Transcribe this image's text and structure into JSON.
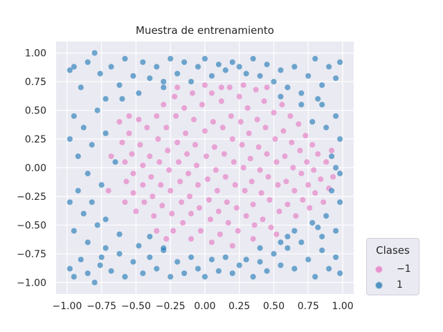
{
  "chart_data": {
    "type": "scatter",
    "title": "Muestra de entrenamiento",
    "xlim": [
      -1.08,
      1.08
    ],
    "ylim": [
      -1.1,
      1.1
    ],
    "xticks": [
      -1.0,
      -0.75,
      -0.5,
      -0.25,
      0.0,
      0.25,
      0.5,
      0.75,
      1.0
    ],
    "yticks": [
      -1.0,
      -0.75,
      -0.5,
      -0.25,
      0.0,
      0.25,
      0.5,
      0.75,
      1.0
    ],
    "xtick_labels": [
      "−1.00",
      "−0.75",
      "−0.50",
      "−0.25",
      "0.00",
      "0.25",
      "0.50",
      "0.75",
      "1.00"
    ],
    "ytick_labels": [
      "−1.00",
      "−0.75",
      "−0.50",
      "−0.25",
      "0.00",
      "0.25",
      "0.50",
      "0.75",
      "1.00"
    ],
    "grid": true,
    "legend": {
      "title": "Clases",
      "placement": "outside-lower-right",
      "entries": [
        {
          "label": "−1",
          "color": "#e377c2"
        },
        {
          "label": "1",
          "color": "#1f77b4"
        }
      ]
    },
    "colors": {
      "negative_class": "#e377c2",
      "positive_class": "#1f77b4",
      "background": "#eaeaf2",
      "grid": "#ffffff"
    },
    "series": [
      {
        "class": "−1",
        "color": "#e377c2",
        "points": [
          [
            -0.62,
            0.4
          ],
          [
            -0.6,
            0.22
          ],
          [
            -0.58,
            0.05
          ],
          [
            -0.57,
            -0.12
          ],
          [
            -0.58,
            -0.3
          ],
          [
            -0.55,
            0.3
          ],
          [
            -0.53,
            0.12
          ],
          [
            -0.52,
            -0.05
          ],
          [
            -0.52,
            -0.22
          ],
          [
            -0.5,
            -0.38
          ],
          [
            -0.48,
            0.42
          ],
          [
            -0.47,
            0.2
          ],
          [
            -0.45,
            0.02
          ],
          [
            -0.45,
            -0.15
          ],
          [
            -0.44,
            -0.3
          ],
          [
            -0.42,
            0.35
          ],
          [
            -0.4,
            0.1
          ],
          [
            -0.39,
            -0.08
          ],
          [
            -0.38,
            -0.25
          ],
          [
            -0.37,
            -0.42
          ],
          [
            -0.35,
            0.45
          ],
          [
            -0.34,
            0.25
          ],
          [
            -0.33,
            0.05
          ],
          [
            -0.32,
            -0.15
          ],
          [
            -0.31,
            -0.33
          ],
          [
            -0.3,
            0.55
          ],
          [
            -0.28,
            0.35
          ],
          [
            -0.27,
            0.15
          ],
          [
            -0.26,
            -0.02
          ],
          [
            -0.25,
            -0.2
          ],
          [
            -0.24,
            -0.4
          ],
          [
            -0.23,
            -0.55
          ],
          [
            -0.22,
            0.62
          ],
          [
            -0.21,
            0.45
          ],
          [
            -0.2,
            0.22
          ],
          [
            -0.19,
            0.05
          ],
          [
            -0.18,
            -0.12
          ],
          [
            -0.17,
            -0.3
          ],
          [
            -0.16,
            -0.48
          ],
          [
            -0.15,
            0.52
          ],
          [
            -0.14,
            0.3
          ],
          [
            -0.13,
            0.12
          ],
          [
            -0.12,
            -0.05
          ],
          [
            -0.11,
            -0.25
          ],
          [
            -0.1,
            -0.4
          ],
          [
            -0.09,
            0.65
          ],
          [
            -0.08,
            0.42
          ],
          [
            -0.07,
            0.2
          ],
          [
            -0.06,
            0.02
          ],
          [
            -0.05,
            -0.15
          ],
          [
            -0.04,
            -0.35
          ],
          [
            -0.03,
            -0.55
          ],
          [
            -0.02,
            0.55
          ],
          [
            0.0,
            0.32
          ],
          [
            0.01,
            0.1
          ],
          [
            0.02,
            -0.1
          ],
          [
            0.03,
            -0.28
          ],
          [
            0.04,
            -0.45
          ],
          [
            0.05,
            0.65
          ],
          [
            0.06,
            0.4
          ],
          [
            0.07,
            0.18
          ],
          [
            0.08,
            -0.02
          ],
          [
            0.09,
            -0.2
          ],
          [
            0.1,
            -0.38
          ],
          [
            0.11,
            -0.58
          ],
          [
            0.12,
            0.58
          ],
          [
            0.13,
            0.35
          ],
          [
            0.14,
            0.12
          ],
          [
            0.15,
            -0.08
          ],
          [
            0.16,
            -0.3
          ],
          [
            0.17,
            -0.48
          ],
          [
            0.18,
            0.7
          ],
          [
            0.19,
            0.45
          ],
          [
            0.2,
            0.25
          ],
          [
            0.21,
            0.05
          ],
          [
            0.22,
            -0.15
          ],
          [
            0.23,
            -0.35
          ],
          [
            0.24,
            -0.55
          ],
          [
            0.25,
            0.62
          ],
          [
            0.26,
            0.4
          ],
          [
            0.27,
            0.2
          ],
          [
            0.28,
            0.0
          ],
          [
            0.29,
            -0.2
          ],
          [
            0.3,
            -0.42
          ],
          [
            0.31,
            0.52
          ],
          [
            0.32,
            0.3
          ],
          [
            0.33,
            0.08
          ],
          [
            0.34,
            -0.12
          ],
          [
            0.35,
            -0.32
          ],
          [
            0.36,
            -0.5
          ],
          [
            0.37,
            0.68
          ],
          [
            0.38,
            0.42
          ],
          [
            0.39,
            0.18
          ],
          [
            0.4,
            -0.02
          ],
          [
            0.41,
            -0.22
          ],
          [
            0.42,
            -0.45
          ],
          [
            0.43,
            0.58
          ],
          [
            0.44,
            0.35
          ],
          [
            0.45,
            0.12
          ],
          [
            0.46,
            -0.08
          ],
          [
            0.47,
            -0.28
          ],
          [
            0.48,
            -0.52
          ],
          [
            0.5,
            0.48
          ],
          [
            0.51,
            0.25
          ],
          [
            0.52,
            0.05
          ],
          [
            0.53,
            -0.15
          ],
          [
            0.54,
            -0.38
          ],
          [
            0.56,
            0.55
          ],
          [
            0.57,
            0.32
          ],
          [
            0.58,
            0.1
          ],
          [
            0.59,
            -0.12
          ],
          [
            0.6,
            -0.32
          ],
          [
            0.62,
            0.45
          ],
          [
            0.63,
            0.22
          ],
          [
            0.64,
            0.0
          ],
          [
            0.65,
            -0.2
          ],
          [
            0.66,
            -0.42
          ],
          [
            0.68,
            0.38
          ],
          [
            0.69,
            0.15
          ],
          [
            0.7,
            -0.05
          ],
          [
            0.71,
            -0.28
          ],
          [
            0.73,
            0.28
          ],
          [
            0.74,
            0.05
          ],
          [
            0.75,
            -0.15
          ],
          [
            0.76,
            -0.35
          ],
          [
            0.78,
            0.2
          ],
          [
            0.79,
            -0.02
          ],
          [
            0.8,
            -0.22
          ],
          [
            0.82,
            0.12
          ],
          [
            0.84,
            -0.1
          ],
          [
            0.86,
            -0.3
          ],
          [
            0.88,
            0.05
          ],
          [
            0.9,
            -0.18
          ],
          [
            0.92,
            0.15
          ],
          [
            0.93,
            -0.08
          ],
          [
            -0.35,
            -0.55
          ],
          [
            -0.28,
            -0.62
          ],
          [
            -0.1,
            -0.62
          ],
          [
            0.05,
            -0.65
          ],
          [
            0.2,
            -0.68
          ],
          [
            0.35,
            -0.62
          ],
          [
            0.52,
            -0.58
          ],
          [
            -0.2,
            0.7
          ],
          [
            0.0,
            0.72
          ],
          [
            0.12,
            0.7
          ],
          [
            0.28,
            0.72
          ],
          [
            0.45,
            0.7
          ],
          [
            -0.55,
            0.45
          ],
          [
            -0.68,
            0.1
          ],
          [
            -0.7,
            -0.2
          ]
        ]
      },
      {
        "class": "1",
        "color": "#1f77b4",
        "points": [
          [
            -0.98,
            0.85
          ],
          [
            -0.95,
            0.88
          ],
          [
            -0.9,
            0.7
          ],
          [
            -0.85,
            0.92
          ],
          [
            -0.8,
            1.0
          ],
          [
            -0.76,
            0.82
          ],
          [
            -0.72,
            0.6
          ],
          [
            -0.68,
            0.88
          ],
          [
            -0.62,
            0.72
          ],
          [
            -0.58,
            0.95
          ],
          [
            -0.52,
            0.8
          ],
          [
            -0.48,
            0.65
          ],
          [
            -0.45,
            0.92
          ],
          [
            -0.4,
            0.78
          ],
          [
            -0.35,
            0.88
          ],
          [
            -0.3,
            0.7
          ],
          [
            -0.25,
            0.95
          ],
          [
            -0.2,
            0.82
          ],
          [
            -0.15,
            0.92
          ],
          [
            -0.1,
            0.75
          ],
          [
            -0.05,
            0.88
          ],
          [
            0.0,
            0.95
          ],
          [
            0.05,
            0.8
          ],
          [
            0.1,
            0.9
          ],
          [
            0.15,
            0.85
          ],
          [
            0.2,
            0.92
          ],
          [
            0.25,
            0.88
          ],
          [
            0.3,
            0.82
          ],
          [
            0.35,
            0.95
          ],
          [
            0.4,
            0.8
          ],
          [
            0.45,
            0.9
          ],
          [
            0.5,
            0.75
          ],
          [
            0.55,
            0.85
          ],
          [
            0.6,
            0.7
          ],
          [
            0.65,
            0.88
          ],
          [
            0.7,
            0.65
          ],
          [
            0.75,
            0.8
          ],
          [
            0.8,
            0.95
          ],
          [
            0.85,
            0.72
          ],
          [
            0.9,
            0.88
          ],
          [
            0.95,
            0.78
          ],
          [
            0.98,
            0.92
          ],
          [
            -0.98,
            0.25
          ],
          [
            -0.95,
            0.45
          ],
          [
            -0.92,
            0.1
          ],
          [
            -0.88,
            0.35
          ],
          [
            -0.85,
            -0.05
          ],
          [
            -0.82,
            0.2
          ],
          [
            -0.78,
            0.5
          ],
          [
            -0.75,
            -0.15
          ],
          [
            -0.72,
            0.3
          ],
          [
            -0.98,
            -0.3
          ],
          [
            -0.95,
            -0.55
          ],
          [
            -0.92,
            -0.2
          ],
          [
            -0.88,
            -0.4
          ],
          [
            -0.85,
            -0.65
          ],
          [
            -0.82,
            -0.3
          ],
          [
            -0.78,
            -0.5
          ],
          [
            -0.75,
            -0.78
          ],
          [
            -0.72,
            -0.45
          ],
          [
            -0.98,
            -0.88
          ],
          [
            -0.95,
            -0.95
          ],
          [
            -0.9,
            -0.8
          ],
          [
            -0.85,
            -0.92
          ],
          [
            -0.8,
            -1.0
          ],
          [
            -0.76,
            -0.85
          ],
          [
            -0.72,
            -0.7
          ],
          [
            -0.68,
            -0.9
          ],
          [
            -0.62,
            -0.75
          ],
          [
            -0.58,
            -0.95
          ],
          [
            -0.52,
            -0.82
          ],
          [
            -0.48,
            -0.68
          ],
          [
            -0.45,
            -0.92
          ],
          [
            -0.4,
            -0.78
          ],
          [
            -0.35,
            -0.88
          ],
          [
            -0.3,
            -0.72
          ],
          [
            -0.25,
            -0.95
          ],
          [
            -0.2,
            -0.82
          ],
          [
            -0.15,
            -0.92
          ],
          [
            -0.1,
            -0.78
          ],
          [
            -0.05,
            -0.88
          ],
          [
            0.0,
            -0.95
          ],
          [
            0.05,
            -0.8
          ],
          [
            0.1,
            -0.9
          ],
          [
            0.15,
            -0.78
          ],
          [
            0.2,
            -0.92
          ],
          [
            0.25,
            -0.85
          ],
          [
            0.3,
            -0.8
          ],
          [
            0.35,
            -0.95
          ],
          [
            0.4,
            -0.82
          ],
          [
            0.45,
            -0.9
          ],
          [
            0.5,
            -0.75
          ],
          [
            0.55,
            -0.85
          ],
          [
            0.6,
            -0.7
          ],
          [
            0.65,
            -0.88
          ],
          [
            0.7,
            -0.65
          ],
          [
            0.75,
            -0.8
          ],
          [
            0.8,
            -0.95
          ],
          [
            0.85,
            -0.72
          ],
          [
            0.9,
            -0.88
          ],
          [
            0.95,
            -0.78
          ],
          [
            0.98,
            -0.92
          ],
          [
            0.98,
            0.25
          ],
          [
            0.95,
            0.45
          ],
          [
            0.92,
            0.1
          ],
          [
            0.88,
            0.35
          ],
          [
            0.85,
            0.55
          ],
          [
            0.82,
            0.6
          ],
          [
            0.78,
            0.4
          ],
          [
            0.98,
            -0.3
          ],
          [
            0.95,
            -0.55
          ],
          [
            0.92,
            -0.2
          ],
          [
            0.88,
            -0.42
          ],
          [
            0.85,
            -0.6
          ],
          [
            0.82,
            -0.52
          ],
          [
            0.78,
            -0.48
          ],
          [
            0.98,
            -0.05
          ],
          [
            0.95,
            0.0
          ],
          [
            -0.65,
            0.05
          ],
          [
            -0.62,
            -0.58
          ],
          [
            -0.6,
            0.6
          ],
          [
            0.65,
            -0.55
          ],
          [
            0.7,
            0.55
          ],
          [
            -0.4,
            -0.6
          ],
          [
            -0.3,
            -0.7
          ],
          [
            0.4,
            -0.7
          ],
          [
            0.55,
            -0.65
          ],
          [
            -0.3,
            0.75
          ],
          [
            0.55,
            0.62
          ],
          [
            0.6,
            -0.6
          ]
        ]
      }
    ]
  }
}
